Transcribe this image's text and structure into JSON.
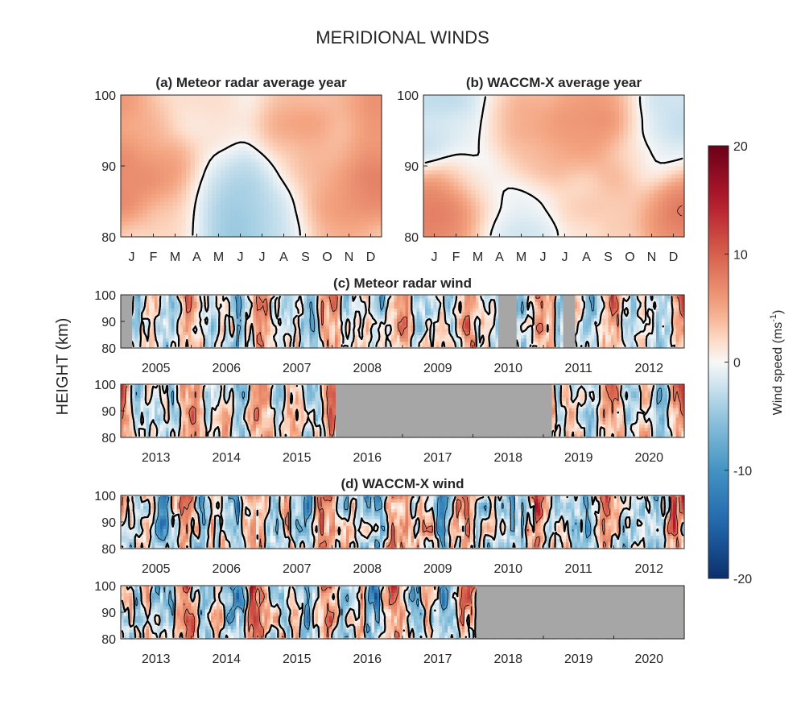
{
  "figure": {
    "title": "MERIDIONAL WINDS",
    "ylabel": "HEIGHT (km)"
  },
  "colorbar": {
    "label": "Wind speed (ms",
    "label_sup": "-1",
    "label_end": ")",
    "ticks": [
      "20",
      "10",
      "0",
      "-10",
      "-20"
    ],
    "tick_values": [
      20,
      10,
      0,
      -10,
      -20
    ],
    "range": [
      -20,
      20
    ],
    "colormap": "diverging blue-white-red",
    "colors": {
      "negative_max": "#0b2f6b",
      "zero": "#f7f7f7",
      "positive_max": "#6b0017"
    }
  },
  "chart_data": [
    {
      "type": "heatmap",
      "id": "a",
      "title": "(a) Meteor radar average year",
      "x_tick_labels": [
        "J",
        "F",
        "M",
        "A",
        "M",
        "J",
        "J",
        "A",
        "S",
        "O",
        "N",
        "D"
      ],
      "y_ticks": [
        "100",
        "90",
        "80"
      ],
      "ylim": [
        80,
        100
      ],
      "blobs": [
        {
          "month": 1.5,
          "height": 88,
          "value": 8
        },
        {
          "month": 0.8,
          "height": 95,
          "value": 4
        },
        {
          "month": 2.5,
          "height": 82,
          "value": 3
        },
        {
          "month": 4.0,
          "height": 99,
          "value": 2
        },
        {
          "month": 5.2,
          "height": 81,
          "value": -8
        },
        {
          "month": 5.8,
          "height": 84,
          "value": -5
        },
        {
          "month": 4.3,
          "height": 83,
          "value": -3
        },
        {
          "month": 7.2,
          "height": 83,
          "value": -2
        },
        {
          "month": 8.3,
          "height": 96,
          "value": 6
        },
        {
          "month": 8.8,
          "height": 99,
          "value": 5
        },
        {
          "month": 9.6,
          "height": 87,
          "value": 5
        },
        {
          "month": 10.4,
          "height": 82,
          "value": 6
        },
        {
          "month": 11.6,
          "height": 89,
          "value": 10
        },
        {
          "month": 11.7,
          "height": 98,
          "value": 8
        },
        {
          "month": 9.5,
          "height": 93,
          "value": 3
        }
      ]
    },
    {
      "type": "heatmap",
      "id": "b",
      "title": "(b) WACCM-X average year",
      "x_tick_labels": [
        "J",
        "F",
        "M",
        "A",
        "M",
        "J",
        "J",
        "A",
        "S",
        "O",
        "N",
        "D"
      ],
      "y_ticks": [
        "100",
        "90",
        "80"
      ],
      "ylim": [
        80,
        100
      ],
      "blobs": [
        {
          "month": 1.2,
          "height": 84,
          "value": 9
        },
        {
          "month": 0.7,
          "height": 97,
          "value": -3
        },
        {
          "month": 2.5,
          "height": 88,
          "value": -1
        },
        {
          "month": 4.5,
          "height": 95,
          "value": 5
        },
        {
          "month": 5.5,
          "height": 93,
          "value": 4
        },
        {
          "month": 4.3,
          "height": 82,
          "value": -2
        },
        {
          "month": 6.8,
          "height": 96,
          "value": 7
        },
        {
          "month": 8.2,
          "height": 97,
          "value": 8
        },
        {
          "month": 9.0,
          "height": 91,
          "value": 5
        },
        {
          "month": 8.0,
          "height": 82,
          "value": 3
        },
        {
          "month": 10.5,
          "height": 93,
          "value": -3
        },
        {
          "month": 11.7,
          "height": 83,
          "value": 9
        },
        {
          "month": 11.5,
          "height": 97,
          "value": -2
        }
      ]
    },
    {
      "type": "heatmap",
      "id": "c",
      "title": "(c) Meteor radar wind",
      "ylim": [
        80,
        100
      ],
      "y_ticks": [
        "100",
        "90",
        "80"
      ],
      "rows": [
        {
          "years": [
            "2005",
            "2006",
            "2007",
            "2008",
            "2009",
            "2010",
            "2011",
            "2012"
          ],
          "missing": [
            {
              "start": 2004.5,
              "end": 2004.66
            },
            {
              "start": 2009.86,
              "end": 2010.12
            },
            {
              "start": 2010.78,
              "end": 2010.95
            }
          ],
          "seasonal_amplitude": 7,
          "noise": 5,
          "bias": 0.5
        },
        {
          "years": [
            "2013",
            "2014",
            "2015",
            "2016",
            "2017",
            "2018",
            "2019",
            "2020"
          ],
          "missing": [
            {
              "start": 2015.55,
              "end": 2018.62
            }
          ],
          "seasonal_amplitude": 6,
          "noise": 5,
          "bias": 1
        }
      ]
    },
    {
      "type": "heatmap",
      "id": "d",
      "title": "(d) WACCM-X wind",
      "ylim": [
        80,
        100
      ],
      "y_ticks": [
        "100",
        "90",
        "80"
      ],
      "rows": [
        {
          "years": [
            "2005",
            "2006",
            "2007",
            "2008",
            "2009",
            "2010",
            "2011",
            "2012"
          ],
          "missing": [],
          "seasonal_amplitude": 8,
          "noise": 7,
          "bias": 0
        },
        {
          "years": [
            "2013",
            "2014",
            "2015",
            "2016",
            "2017",
            "2018",
            "2019",
            "2020"
          ],
          "missing": [
            {
              "start": 2017.55,
              "end": 2020.5
            }
          ],
          "seasonal_amplitude": 8,
          "noise": 7,
          "bias": 0
        }
      ]
    }
  ]
}
